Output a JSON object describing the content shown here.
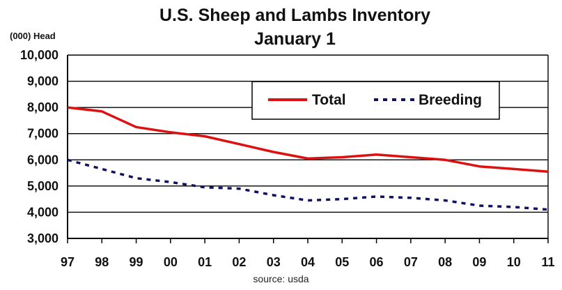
{
  "chart_data": {
    "type": "line",
    "title": "U.S. Sheep and Lambs Inventory",
    "subtitle": "January 1",
    "ylabel": "(000) Head",
    "xlabel": "",
    "source": "source: usda",
    "categories": [
      "97",
      "98",
      "99",
      "00",
      "01",
      "02",
      "03",
      "04",
      "05",
      "06",
      "07",
      "08",
      "09",
      "10",
      "11"
    ],
    "y_ticks": [
      "3,000",
      "4,000",
      "5,000",
      "6,000",
      "7,000",
      "8,000",
      "9,000",
      "10,000"
    ],
    "ylim": [
      3000,
      10000
    ],
    "grid": true,
    "legend_position": "top-right",
    "series": [
      {
        "name": "Total",
        "color": "#dd1111",
        "style": "solid",
        "values": [
          8000,
          7850,
          7250,
          7050,
          6900,
          6600,
          6300,
          6050,
          6100,
          6200,
          6100,
          6000,
          5750,
          5650,
          5550
        ]
      },
      {
        "name": "Breeding",
        "color": "#101060",
        "style": "dashed",
        "values": [
          6000,
          5650,
          5300,
          5150,
          4950,
          4900,
          4650,
          4450,
          4500,
          4600,
          4550,
          4450,
          4250,
          4200,
          4100
        ]
      }
    ]
  }
}
